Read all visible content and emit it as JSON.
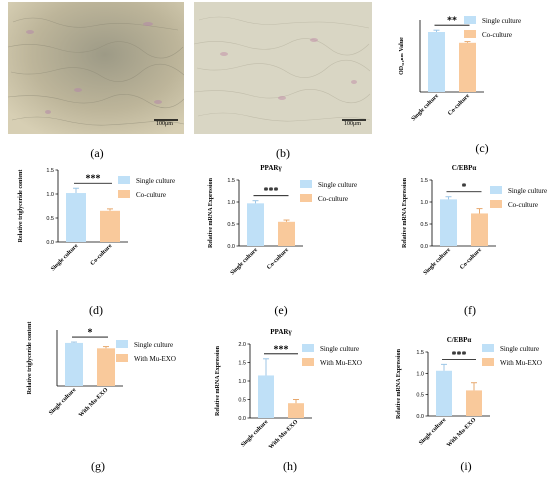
{
  "colors": {
    "single": "#bfe0f7",
    "single_err": "#9dc6e6",
    "other": "#f9c99b",
    "other_err": "#e7a86d",
    "axis": "#000000"
  },
  "micrographs": [
    {
      "panel": "(a)",
      "scalebar": "100μm"
    },
    {
      "panel": "(b)",
      "scalebar": "100μm"
    }
  ],
  "chart_data": [
    {
      "panel": "(c)",
      "type": "bar",
      "title": "",
      "ylabel": "OD₅₁₀ₙₘ Value",
      "categories": [
        "Single culture",
        "Co-culture"
      ],
      "values": [
        1.0,
        0.82
      ],
      "errors": [
        0.03,
        0.02
      ],
      "ylim": [
        0,
        1.2
      ],
      "ticks": [],
      "sig": "**",
      "legend": [
        "Single culture",
        "Co-culture"
      ]
    },
    {
      "panel": "(d)",
      "type": "bar",
      "title": "",
      "ylabel": "Relative triglyceride content",
      "categories": [
        "Single culture",
        "Co-culture"
      ],
      "values": [
        1.02,
        0.65
      ],
      "errors": [
        0.1,
        0.04
      ],
      "ylim": [
        0,
        1.5
      ],
      "ticks": [
        "0.0",
        "0.5",
        "1.0",
        "1.5"
      ],
      "sig": "***",
      "legend": [
        "Single culture",
        "Co-culture"
      ]
    },
    {
      "panel": "(e)",
      "type": "bar",
      "title": "PPARγ",
      "ylabel": "Relative mRNA Expression",
      "categories": [
        "Single culture",
        "Co-culture"
      ],
      "values": [
        0.97,
        0.55
      ],
      "errors": [
        0.06,
        0.04
      ],
      "ylim": [
        0,
        1.5
      ],
      "ticks": [
        "0.0",
        "0.5",
        "1.0",
        "1.5"
      ],
      "sig": "***",
      "legend": [
        "Single culture",
        "Co-culture"
      ]
    },
    {
      "panel": "(f)",
      "type": "bar",
      "title": "C/EBPα",
      "ylabel": "Relative mRNA Expression",
      "categories": [
        "Single culture",
        "Co-culture"
      ],
      "values": [
        1.06,
        0.74
      ],
      "errors": [
        0.06,
        0.11
      ],
      "ylim": [
        0,
        1.5
      ],
      "ticks": [
        "0.0",
        "0.5",
        "1.0",
        "1.5"
      ],
      "sig": "*",
      "legend": [
        "Single culture",
        "Co-culture"
      ]
    },
    {
      "panel": "(g)",
      "type": "bar",
      "title": "",
      "ylabel": "Relative triglyceride content",
      "categories": [
        "Single culture",
        "With Mu-EXO"
      ],
      "values": [
        2.0,
        1.75
      ],
      "errors": [
        0.04,
        0.08
      ],
      "ylim": [
        0,
        2.6
      ],
      "ticks": [],
      "sig": "*",
      "legend": [
        "Single culture",
        "With Mu-EXO"
      ]
    },
    {
      "panel": "(h)",
      "type": "bar",
      "title": "PPARγ",
      "ylabel": "Relative mRNA Expression",
      "categories": [
        "Single culture",
        "With Mu-EXO"
      ],
      "values": [
        1.15,
        0.4
      ],
      "errors": [
        0.45,
        0.1
      ],
      "ylim": [
        0,
        2.0
      ],
      "ticks": [
        "0.0",
        "0.5",
        "1.0",
        "1.5",
        "2.0"
      ],
      "sig": "***",
      "legend": [
        "Single culture",
        "With Mu-EXO"
      ]
    },
    {
      "panel": "(i)",
      "type": "bar",
      "title": "C/EBPα",
      "ylabel": "Relative mRNA Expression",
      "categories": [
        "Single culture",
        "With Mu-EXO"
      ],
      "values": [
        1.06,
        0.6
      ],
      "errors": [
        0.15,
        0.18
      ],
      "ylim": [
        0,
        1.5
      ],
      "ticks": [
        "0.0",
        "0.5",
        "1.0",
        "1.5"
      ],
      "sig": "***",
      "legend": [
        "Single culture",
        "With Mu-EXO"
      ]
    }
  ]
}
